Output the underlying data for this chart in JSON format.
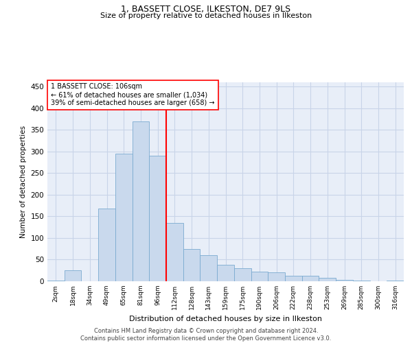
{
  "title": "1, BASSETT CLOSE, ILKESTON, DE7 9LS",
  "subtitle": "Size of property relative to detached houses in Ilkeston",
  "xlabel": "Distribution of detached houses by size in Ilkeston",
  "ylabel": "Number of detached properties",
  "footer_line1": "Contains HM Land Registry data © Crown copyright and database right 2024.",
  "footer_line2": "Contains public sector information licensed under the Open Government Licence v3.0.",
  "property_label": "1 BASSETT CLOSE: 106sqm",
  "annotation_line1": "← 61% of detached houses are smaller (1,034)",
  "annotation_line2": "39% of semi-detached houses are larger (658) →",
  "bar_color": "#c9d9ed",
  "bar_edge_color": "#7aaad0",
  "vline_color": "red",
  "annotation_box_color": "red",
  "grid_color": "#c8d4e8",
  "background_color": "#e8eef8",
  "categories": [
    "2sqm",
    "18sqm",
    "34sqm",
    "49sqm",
    "65sqm",
    "81sqm",
    "96sqm",
    "112sqm",
    "128sqm",
    "143sqm",
    "159sqm",
    "175sqm",
    "190sqm",
    "206sqm",
    "222sqm",
    "238sqm",
    "253sqm",
    "269sqm",
    "285sqm",
    "300sqm",
    "316sqm"
  ],
  "values": [
    2,
    25,
    0,
    168,
    295,
    370,
    290,
    135,
    75,
    60,
    38,
    30,
    23,
    20,
    13,
    13,
    8,
    3,
    1,
    0,
    2
  ],
  "ylim": [
    0,
    460
  ],
  "yticks": [
    0,
    50,
    100,
    150,
    200,
    250,
    300,
    350,
    400,
    450
  ],
  "vline_x_index": 6.5,
  "figwidth": 6.0,
  "figheight": 5.0,
  "dpi": 100
}
